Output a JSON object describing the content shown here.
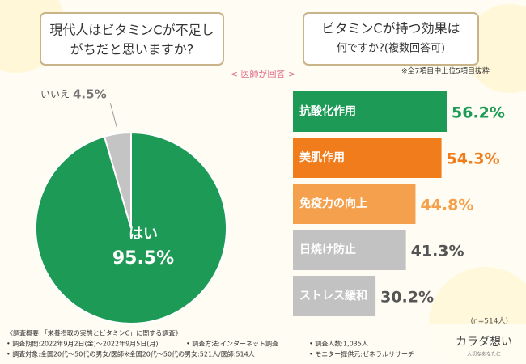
{
  "header": {
    "center_label": "< 医師が回答 >"
  },
  "chart_data": [
    {
      "type": "pie",
      "title": [
        "現代人はビタミンCが不足し",
        "がちだと思いますか?"
      ],
      "categories": [
        "はい",
        "いいえ"
      ],
      "values": [
        95.5,
        4.5
      ],
      "value_labels": [
        "95.5%",
        "4.5%"
      ],
      "colors": [
        "#1e9a57",
        "#c4c4c4"
      ]
    },
    {
      "type": "bar",
      "orientation": "horizontal",
      "title": [
        "ビタミンCが持つ効果は",
        "何ですか?(複数回答可)"
      ],
      "subtitle": "※全7項目中上位5項目抜粋",
      "categories": [
        "抗酸化作用",
        "美肌作用",
        "免疫力の向上",
        "日焼け防止",
        "ストレス緩和"
      ],
      "values": [
        56.2,
        54.3,
        44.8,
        41.3,
        30.2
      ],
      "value_labels": [
        "56.2%",
        "54.3%",
        "44.8%",
        "41.3%",
        "30.2%"
      ],
      "colors": [
        "#1e9a57",
        "#f07c1c",
        "#f5a04c",
        "#c2c2c2",
        "#c2c2c2"
      ],
      "label_colors": [
        "#1e9a57",
        "#f07c1c",
        "#f5a04c",
        "#555555",
        "#555555"
      ],
      "note": "(n=514人)"
    }
  ],
  "footer": {
    "lines": [
      "《調査概要:「栄養摂取の実態とビタミンC」に関する調査》",
      "• 調査期間:2022年9月2日(金)〜2022年9月5日(月)",
      "• 調査方法:インターネット調査",
      "• 調査人数:1,035人",
      "• 調査対象:全国20代〜50代の男女/医師※全国20代〜50代の男女:521人/医師:514人",
      "• モニター提供元:ゼネラルリサーチ"
    ],
    "brand": "カラダ想い",
    "brand_sub": "大切なあなたに"
  }
}
